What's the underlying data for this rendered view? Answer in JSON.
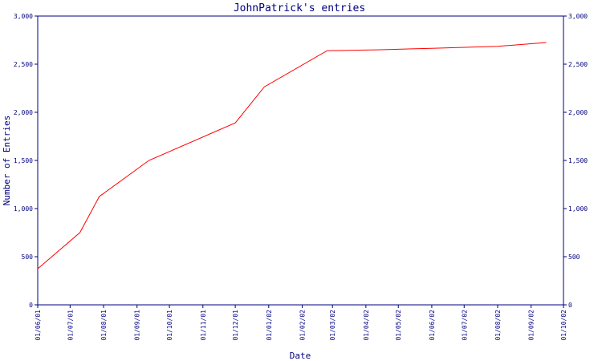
{
  "chart_data": {
    "type": "line",
    "title": "JohnPatrick's entries",
    "xlabel": "Date",
    "ylabel": "Number of Entries",
    "ylim": [
      0,
      3000
    ],
    "yticks": [
      0,
      500,
      1000,
      1500,
      2000,
      2500,
      3000
    ],
    "ytick_labels": [
      "0",
      "500",
      "1,000",
      "1,500",
      "2,000",
      "2,500",
      "3,000"
    ],
    "xticks": [
      "2001-06-01",
      "2001-07-01",
      "2001-08-01",
      "2001-09-01",
      "2001-10-01",
      "2001-11-01",
      "2001-12-01",
      "2002-01-01",
      "2002-02-01",
      "2002-03-01",
      "2002-04-01",
      "2002-05-01",
      "2002-06-01",
      "2002-07-01",
      "2002-08-01",
      "2002-09-01",
      "2002-10-01"
    ],
    "xtick_labels": [
      "01/06/01",
      "01/07/01",
      "01/08/01",
      "01/09/01",
      "01/10/01",
      "01/11/01",
      "01/12/01",
      "01/01/02",
      "01/02/02",
      "01/03/02",
      "01/04/02",
      "01/05/02",
      "01/06/02",
      "01/07/02",
      "01/08/02",
      "01/09/02",
      "01/10/02"
    ],
    "xlim": [
      "2001-06-01",
      "2002-10-01"
    ],
    "grid": false,
    "series": [
      {
        "color": "#ff0000",
        "x": [
          "2001-06-01",
          "2001-07-10",
          "2001-07-28",
          "2001-09-12",
          "2001-12-01",
          "2001-12-28",
          "2002-02-24",
          "2002-04-15",
          "2002-06-01",
          "2002-08-01",
          "2002-09-15"
        ],
        "y": [
          375,
          750,
          1125,
          1500,
          1890,
          2265,
          2640,
          2650,
          2665,
          2685,
          2725
        ]
      }
    ]
  }
}
